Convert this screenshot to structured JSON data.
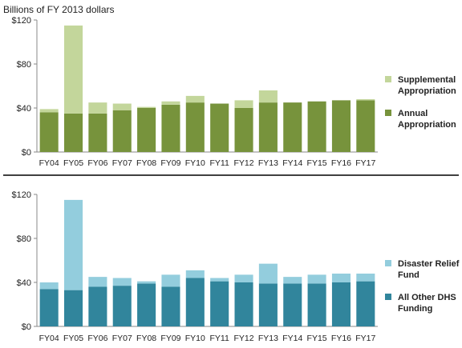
{
  "chart_data": [
    {
      "type": "bar",
      "stacked": true,
      "ylabel": "Billions of FY 2013 dollars",
      "ylim": [
        0,
        120
      ],
      "yticks": [
        "$0",
        "$40",
        "$80",
        "$120"
      ],
      "ytick_values": [
        0,
        40,
        80,
        120
      ],
      "grid": false,
      "legend_position": "right",
      "categories": [
        "FY04",
        "FY05",
        "FY06",
        "FY07",
        "FY08",
        "FY09",
        "FY10",
        "FY11",
        "FY12",
        "FY13",
        "FY14",
        "FY15",
        "FY16",
        "FY17"
      ],
      "series": [
        {
          "name": "Annual Appropriation",
          "color": "#77933c",
          "values": [
            36,
            35,
            35,
            38,
            40,
            43,
            45,
            44,
            40,
            45,
            45,
            46,
            47,
            47
          ]
        },
        {
          "name": "Supplemental Appropriation",
          "color": "#c3d69b",
          "values": [
            3,
            80,
            10,
            6,
            1,
            3,
            6,
            0,
            7,
            11,
            0,
            0,
            0,
            1
          ]
        }
      ]
    },
    {
      "type": "bar",
      "stacked": true,
      "ylim": [
        0,
        120
      ],
      "yticks": [
        "$0",
        "$40",
        "$80",
        "$120"
      ],
      "ytick_values": [
        0,
        40,
        80,
        120
      ],
      "grid": false,
      "legend_position": "right",
      "categories": [
        "FY04",
        "FY05",
        "FY06",
        "FY07",
        "FY08",
        "FY09",
        "FY10",
        "FY11",
        "FY12",
        "FY13",
        "FY14",
        "FY15",
        "FY16",
        "FY17"
      ],
      "series": [
        {
          "name": "All Other DHS Funding",
          "color": "#31859c",
          "values": [
            34,
            33,
            36,
            37,
            39,
            36,
            44,
            41,
            40,
            39,
            39,
            39,
            40,
            41
          ]
        },
        {
          "name": "Disaster Relief Fund",
          "color": "#93cddd",
          "values": [
            6,
            82,
            9,
            7,
            2,
            11,
            7,
            3,
            7,
            18,
            6,
            8,
            8,
            7
          ]
        }
      ]
    }
  ]
}
